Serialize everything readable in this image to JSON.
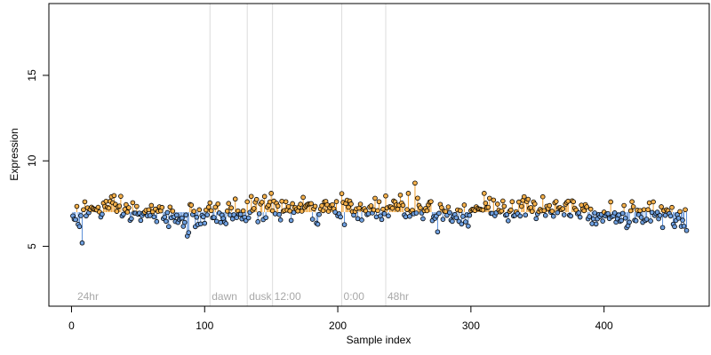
{
  "chart_data": {
    "type": "scatter",
    "title": "",
    "xlabel": "Sample index",
    "ylabel": "Expression",
    "xlim": [
      -17,
      479
    ],
    "ylim": [
      1.5,
      19.2
    ],
    "x_ticks": [
      0,
      100,
      200,
      300,
      400
    ],
    "y_ticks": [
      5,
      10,
      15
    ],
    "grid": false,
    "legend": "none",
    "baseline": 7.0,
    "point_count": 462,
    "colors": {
      "above_baseline": "#f5b04a",
      "below_baseline": "#6fa0e0",
      "stem_above": "#f0a030",
      "stem_below": "#5b8fd8",
      "point_edge": "#000000",
      "annotation_line": "#dcdcdc",
      "annotation_text": "#a8a8a8"
    },
    "annotations": [
      {
        "x": 3,
        "label": "24hr",
        "line": false
      },
      {
        "x": 104,
        "label": "dawn",
        "line": true
      },
      {
        "x": 132,
        "label": "dusk",
        "line": true
      },
      {
        "x": 151,
        "label": "12:00",
        "line": true
      },
      {
        "x": 203,
        "label": "0:00",
        "line": true
      },
      {
        "x": 236,
        "label": "48hr",
        "line": true
      }
    ],
    "series_shape": {
      "x_start": 1,
      "x_step": 1,
      "segments": [
        {
          "x_from": 1,
          "x_to": 8,
          "y_from": 6.9,
          "y_to": 6.6
        },
        {
          "x_from": 8,
          "x_to": 30,
          "y_from": 7.0,
          "y_to": 7.3
        },
        {
          "x_from": 30,
          "x_to": 45,
          "y_from": 7.3,
          "y_to": 7.0
        },
        {
          "x_from": 45,
          "x_to": 70,
          "y_from": 7.0,
          "y_to": 6.8
        },
        {
          "x_from": 70,
          "x_to": 100,
          "y_from": 6.8,
          "y_to": 6.7
        },
        {
          "x_from": 100,
          "x_to": 130,
          "y_from": 6.8,
          "y_to": 7.0
        },
        {
          "x_from": 130,
          "x_to": 155,
          "y_from": 7.1,
          "y_to": 7.3
        },
        {
          "x_from": 155,
          "x_to": 180,
          "y_from": 7.2,
          "y_to": 7.1
        },
        {
          "x_from": 180,
          "x_to": 210,
          "y_from": 7.0,
          "y_to": 7.2
        },
        {
          "x_from": 210,
          "x_to": 240,
          "y_from": 7.0,
          "y_to": 7.3
        },
        {
          "x_from": 240,
          "x_to": 270,
          "y_from": 7.4,
          "y_to": 7.2
        },
        {
          "x_from": 270,
          "x_to": 300,
          "y_from": 7.0,
          "y_to": 6.9
        },
        {
          "x_from": 300,
          "x_to": 340,
          "y_from": 7.2,
          "y_to": 7.2
        },
        {
          "x_from": 340,
          "x_to": 390,
          "y_from": 7.2,
          "y_to": 7.3
        },
        {
          "x_from": 390,
          "x_to": 420,
          "y_from": 6.8,
          "y_to": 6.8
        },
        {
          "x_from": 420,
          "x_to": 440,
          "y_from": 6.9,
          "y_to": 6.9
        },
        {
          "x_from": 440,
          "x_to": 462,
          "y_from": 6.7,
          "y_to": 6.6
        }
      ],
      "noise_sd": 0.35,
      "outliers": [
        {
          "x": 8,
          "y": 5.2
        },
        {
          "x": 87,
          "y": 5.6
        },
        {
          "x": 88,
          "y": 5.8
        },
        {
          "x": 150,
          "y": 8.1
        },
        {
          "x": 258,
          "y": 8.7
        },
        {
          "x": 253,
          "y": 8.1
        },
        {
          "x": 30,
          "y": 7.9
        },
        {
          "x": 310,
          "y": 8.1
        },
        {
          "x": 354,
          "y": 7.9
        },
        {
          "x": 405,
          "y": 7.6
        },
        {
          "x": 418,
          "y": 6.2
        },
        {
          "x": 444,
          "y": 6.1
        },
        {
          "x": 180,
          "y": 7.5
        },
        {
          "x": 207,
          "y": 7.7
        }
      ]
    }
  }
}
